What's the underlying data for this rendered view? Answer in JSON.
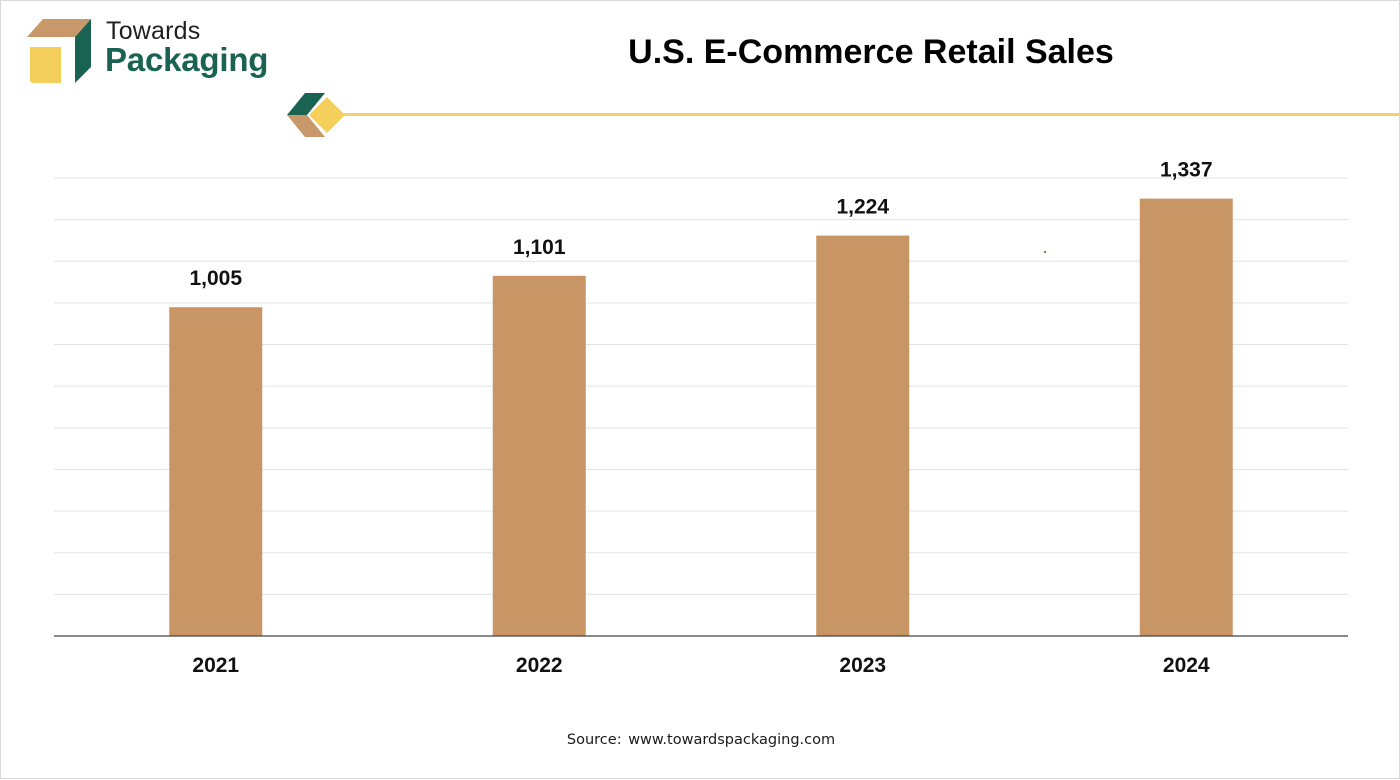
{
  "brand": {
    "name_top": "Towards",
    "name_bottom": "Packaging",
    "colors": {
      "tan": "#c8976a",
      "green": "#1a6352",
      "yellow": "#f5cf5b"
    }
  },
  "header": {
    "title": "U.S. E-Commerce Retail Sales",
    "divider_color": "#f2d16e"
  },
  "chart_data": {
    "type": "bar",
    "title": "U.S. E-Commerce Retail Sales",
    "categories": [
      "2021",
      "2022",
      "2023",
      "2024"
    ],
    "values": [
      1005,
      1101,
      1224,
      1337
    ],
    "value_labels": [
      "1,005",
      "1,101",
      "1,224",
      "1,337"
    ],
    "xlabel": "",
    "ylabel": "",
    "ylim": [
      0,
      1400
    ],
    "grid": true,
    "bar_color": "#c89664",
    "legend": "none"
  },
  "footer": {
    "source_label": "Source:",
    "source_url": "www.towardspackaging.com"
  }
}
